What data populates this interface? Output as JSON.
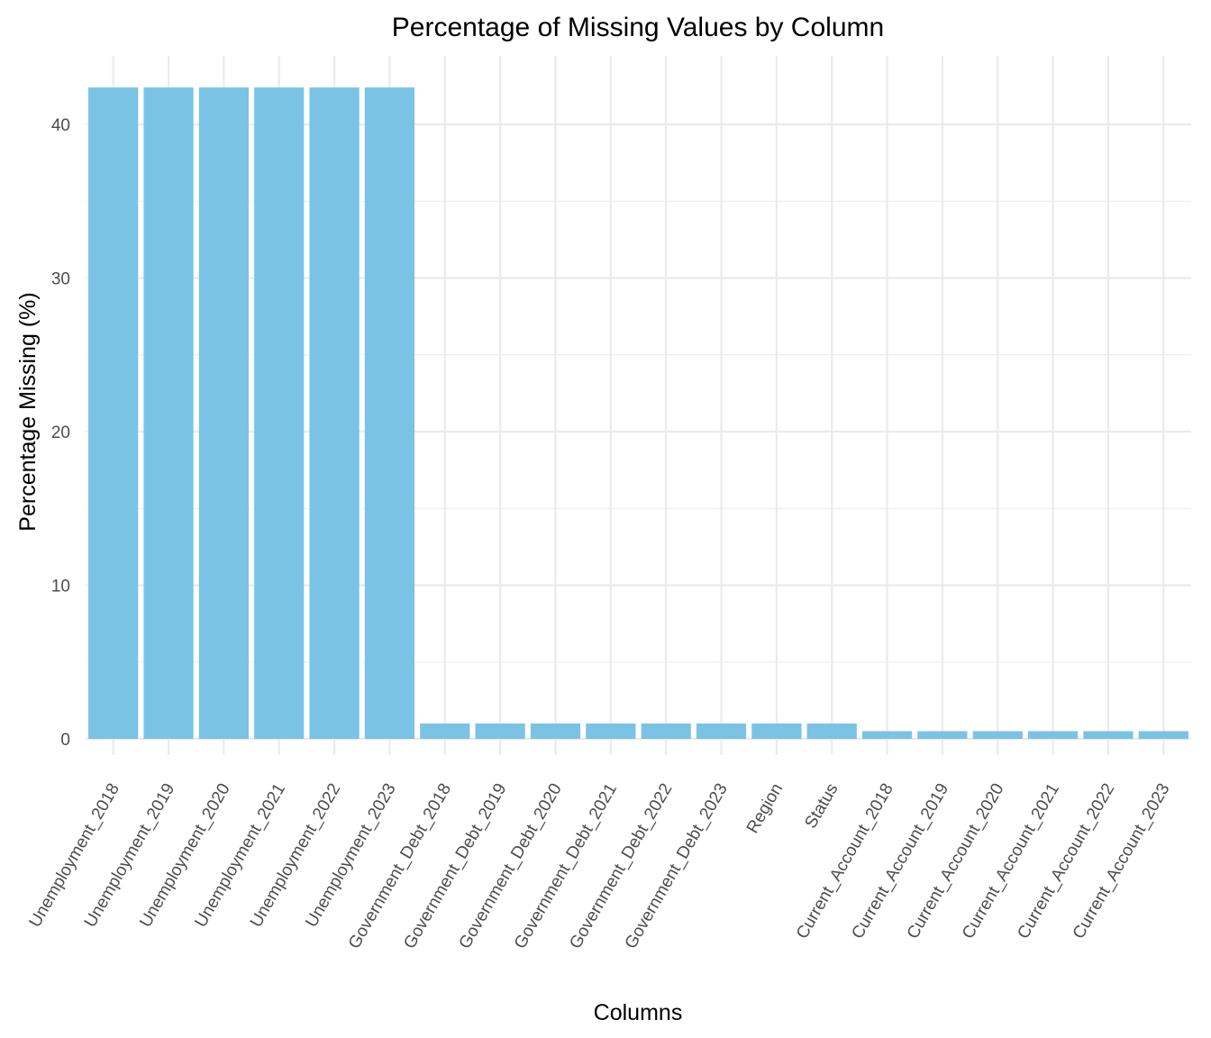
{
  "chart_data": {
    "type": "bar",
    "title": "Percentage of Missing Values by Column",
    "xlabel": "Columns",
    "ylabel": "Percentage Missing (%)",
    "categories": [
      "Unemployment_2018",
      "Unemployment_2019",
      "Unemployment_2020",
      "Unemployment_2021",
      "Unemployment_2022",
      "Unemployment_2023",
      "Government_Debt_2018",
      "Government_Debt_2019",
      "Government_Debt_2020",
      "Government_Debt_2021",
      "Government_Debt_2022",
      "Government_Debt_2023",
      "Region",
      "Status",
      "Current_Account_2018",
      "Current_Account_2019",
      "Current_Account_2020",
      "Current_Account_2021",
      "Current_Account_2022",
      "Current_Account_2023"
    ],
    "values": [
      42.4,
      42.4,
      42.4,
      42.4,
      42.4,
      42.4,
      1.0,
      1.0,
      1.0,
      1.0,
      1.0,
      1.0,
      1.0,
      1.0,
      0.5,
      0.5,
      0.5,
      0.5,
      0.5,
      0.5
    ],
    "yticks": [
      0,
      10,
      20,
      30,
      40
    ],
    "ylim": [
      0,
      43.5
    ],
    "grid": true,
    "bar_color": "#7AC3E5",
    "grid_color": "#EBEBEB"
  }
}
